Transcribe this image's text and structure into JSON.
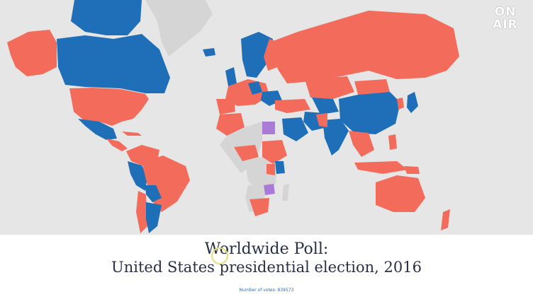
{
  "logo": {
    "line1": "ON",
    "line2": "AIR"
  },
  "title": {
    "line1": "Worldwide Poll:",
    "line2": "United States presidential election, 2016"
  },
  "votes_label": "Number of votes: 839573",
  "legend_colors": {
    "red": "#f26b5b",
    "blue": "#1e6fb8",
    "purple": "#a97ad6",
    "no_data": "#d5d5d5",
    "ocean": "#e6e6e6"
  }
}
